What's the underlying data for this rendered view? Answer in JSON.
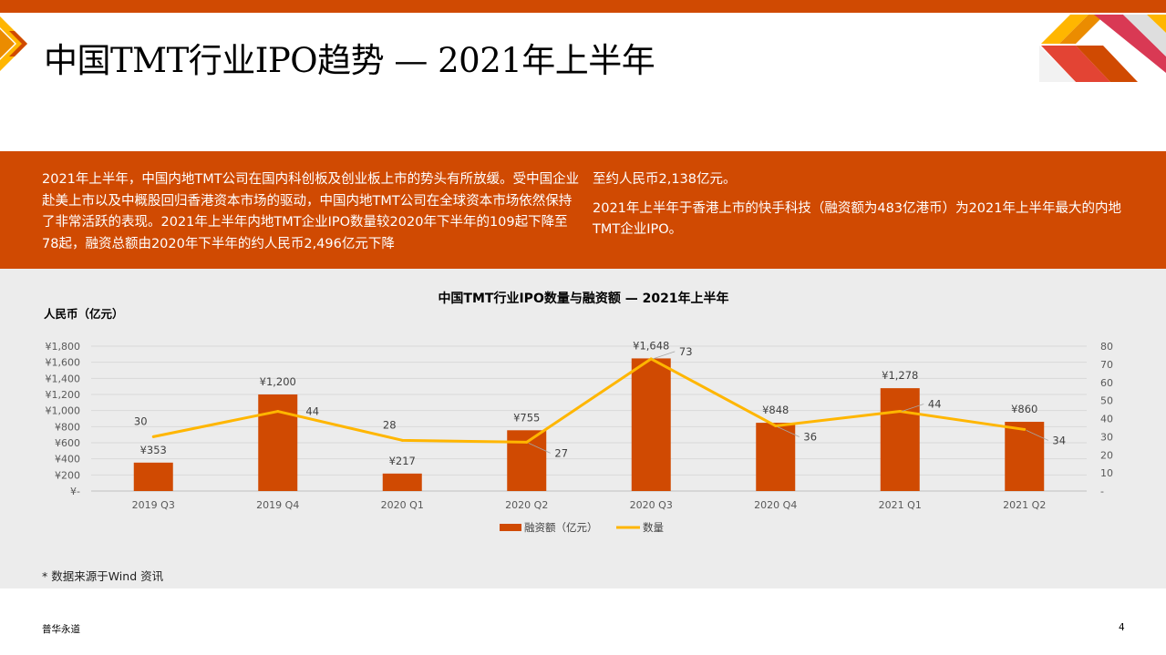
{
  "page": {
    "title": "中国TMT行业IPO趋势 — 2021年上半年",
    "intro_left": "2021年上半年，中国内地TMT公司在国内科创板及创业板上市的势头有所放缓。受中国企业赴美上市以及中概股回归香港资本市场的驱动，中国内地TMT公司在全球资本市场依然保持了非常活跃的表现。2021年上半年内地TMT企业IPO数量较2020年下半年的109起下降至78起，融资总额由2020年下半年的约人民币2,496亿元下降",
    "intro_right_1": "至约人民币2,138亿元。",
    "intro_right_2": "2021年上半年于香港上市的快手科技（融资额为483亿港币）为2021年上半年最大的内地TMT企业IPO。",
    "footnote": "* 数据来源于Wind 资讯",
    "footer_left": "普华永道",
    "footer_right": "4"
  },
  "colors": {
    "brand": "#d04a02",
    "bar": "#d04a02",
    "line": "#ffb600",
    "panel": "#ececec"
  },
  "chart_data": {
    "type": "bar",
    "title": "中国TMT行业IPO数量与融资额 — 2021年上半年",
    "ylabel": "人民币（亿元）",
    "categories": [
      "2019 Q3",
      "2019 Q4",
      "2020 Q1",
      "2020 Q2",
      "2020 Q3",
      "2020 Q4",
      "2021 Q1",
      "2021 Q2"
    ],
    "series": [
      {
        "name": "融资额（亿元）",
        "type": "bar",
        "axis": "left",
        "values": [
          353,
          1200,
          217,
          755,
          1648,
          848,
          1278,
          860
        ],
        "labels": [
          "¥353",
          "¥1,200",
          "¥217",
          "¥755",
          "¥1,648",
          "¥848",
          "¥1,278",
          "¥860"
        ]
      },
      {
        "name": "数量",
        "type": "line",
        "axis": "right",
        "values": [
          30,
          44,
          28,
          27,
          73,
          36,
          44,
          34
        ],
        "labels": [
          "30",
          "44",
          "28",
          "27",
          "73",
          "36",
          "44",
          "34"
        ]
      }
    ],
    "left_axis": {
      "ylim": [
        0,
        1800
      ],
      "ticks": [
        0,
        200,
        400,
        600,
        800,
        1000,
        1200,
        1400,
        1600,
        1800
      ],
      "tick_labels": [
        "¥-",
        "¥200",
        "¥400",
        "¥600",
        "¥800",
        "¥1,000",
        "¥1,200",
        "¥1,400",
        "¥1,600",
        "¥1,800"
      ]
    },
    "right_axis": {
      "ylim": [
        0,
        80
      ],
      "ticks": [
        0,
        10,
        20,
        30,
        40,
        50,
        60,
        70,
        80
      ],
      "tick_labels": [
        "-",
        "10",
        "20",
        "30",
        "40",
        "50",
        "60",
        "70",
        "80"
      ]
    },
    "grid": true,
    "legend_position": "bottom"
  }
}
